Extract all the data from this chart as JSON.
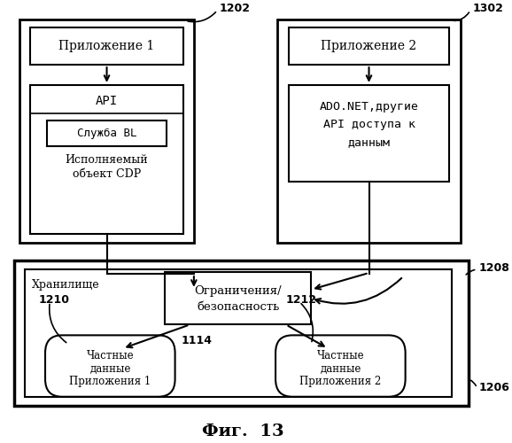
{
  "fig_label": "Фиг.  13",
  "bg_color": "#ffffff",
  "app1_label": "1202",
  "app2_label": "1302",
  "store_label": "1206",
  "store_inner_label": "1208",
  "priv1_label": "1210",
  "priv2_label": "1212",
  "restrict_label": "1114",
  "app1_text": "Приложение 1",
  "api_text": "API",
  "bl_inner_text": "Служба BL",
  "bl_sub_text1": "Исполняемый",
  "bl_sub_text2": "объект CDP",
  "app2_text": "Приложение 2",
  "ado_line1": "ADO.NET,другие",
  "ado_line2": "API доступа к",
  "ado_line3": "данным",
  "store_text": "Хранилище",
  "restrict_line1": "Ограничения/",
  "restrict_line2": "безопасность",
  "priv1_line1": "Частные",
  "priv1_line2": "данные",
  "priv1_line3": "Приложения 1",
  "priv2_line1": "Частные",
  "priv2_line2": "данные",
  "priv2_line3": "Приложения 2"
}
